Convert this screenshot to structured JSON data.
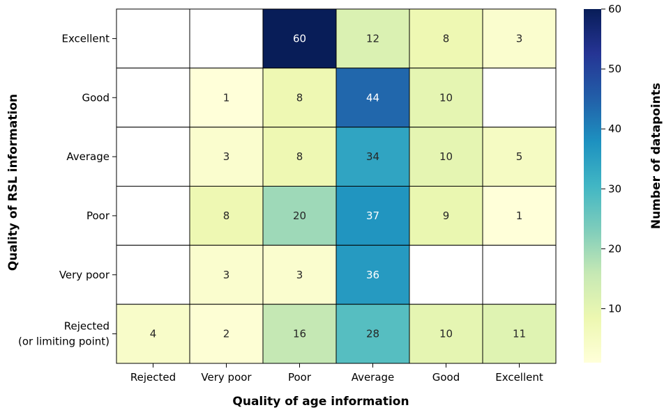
{
  "chart_data": {
    "type": "heatmap",
    "xlabel": "Quality of age information",
    "ylabel": "Quality of RSL information",
    "x_categories": [
      "Rejected",
      "Very poor",
      "Poor",
      "Average",
      "Good",
      "Excellent"
    ],
    "y_categories": [
      [
        "Excellent"
      ],
      [
        "Good"
      ],
      [
        "Average"
      ],
      [
        "Poor"
      ],
      [
        "Very poor"
      ],
      [
        "Rejected",
        "(or limiting point)"
      ]
    ],
    "values": [
      [
        null,
        null,
        60,
        12,
        8,
        3
      ],
      [
        null,
        1,
        8,
        44,
        10,
        null
      ],
      [
        null,
        3,
        8,
        34,
        10,
        5
      ],
      [
        null,
        8,
        20,
        37,
        9,
        1
      ],
      [
        null,
        3,
        3,
        36,
        null,
        null
      ],
      [
        4,
        2,
        16,
        28,
        10,
        11
      ]
    ],
    "colorbar": {
      "label": "Number of datapoints",
      "colormap": "YlGnBu",
      "vmin": 1,
      "vmax": 60,
      "ticks": [
        10,
        20,
        30,
        40,
        50,
        60
      ]
    },
    "missing_color": "#ffffff",
    "annotation_color_light": "#ffffff",
    "annotation_color_dark": "#262626",
    "grid_color": "#000000"
  }
}
